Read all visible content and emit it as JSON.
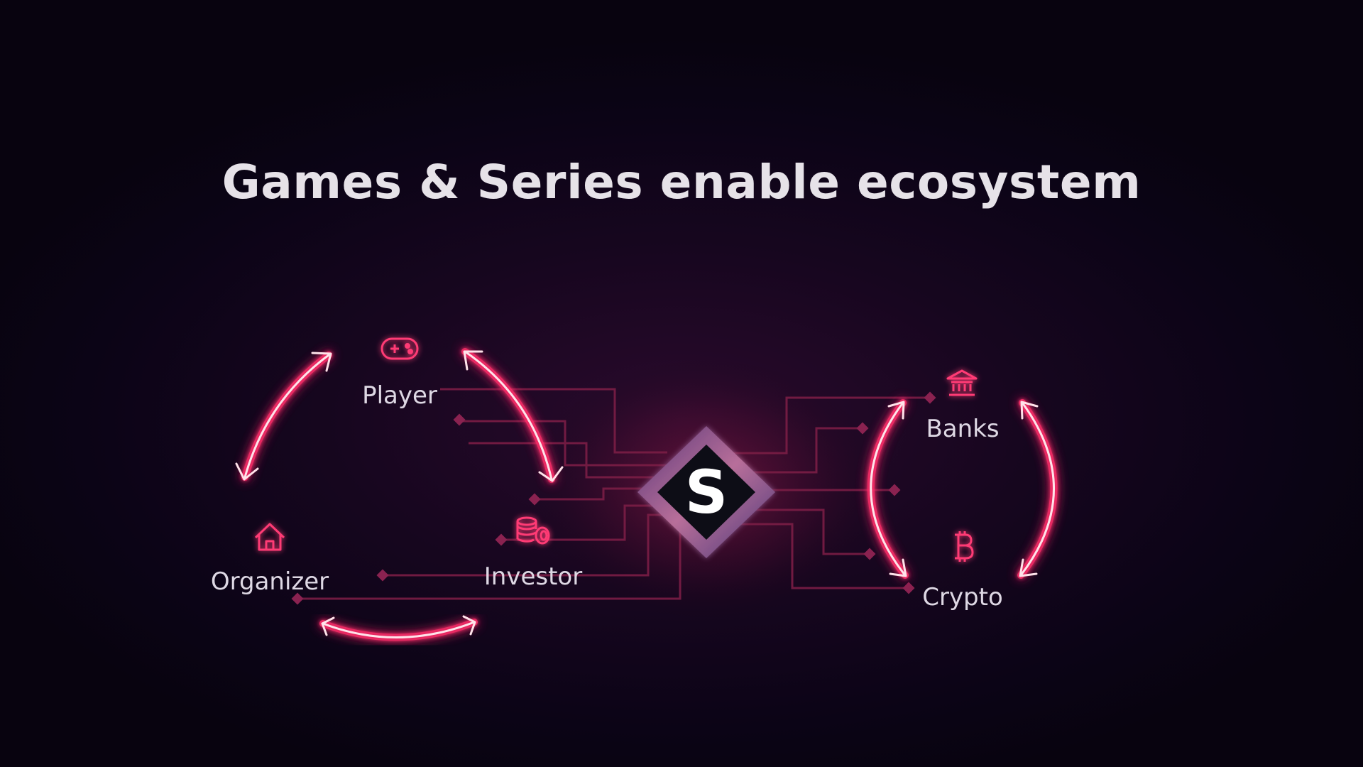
{
  "title": "Games & Series enable ecosystem",
  "colors": {
    "background": "#0b0416",
    "accent": "#ff2d6a",
    "arrow_core": "#ffe3ea",
    "circuit": "#7a1d45",
    "label": "#ded8e4"
  },
  "logo": {
    "letter": "S"
  },
  "nodes": [
    {
      "id": "player",
      "label": "Player",
      "icon": "gamepad-icon"
    },
    {
      "id": "organizer",
      "label": "Organizer",
      "icon": "house-icon"
    },
    {
      "id": "investor",
      "label": "Investor",
      "icon": "coins-icon"
    },
    {
      "id": "banks",
      "label": "Banks",
      "icon": "bank-icon"
    },
    {
      "id": "crypto",
      "label": "Crypto",
      "icon": "bitcoin-icon"
    }
  ],
  "edges": [
    {
      "from": "organizer",
      "to": "player",
      "direction": "both"
    },
    {
      "from": "player",
      "to": "investor",
      "direction": "both"
    },
    {
      "from": "organizer",
      "to": "investor",
      "direction": "both"
    },
    {
      "from": "banks",
      "to": "crypto",
      "direction": "both"
    },
    {
      "from": "crypto",
      "to": "banks",
      "direction": "both"
    }
  ]
}
